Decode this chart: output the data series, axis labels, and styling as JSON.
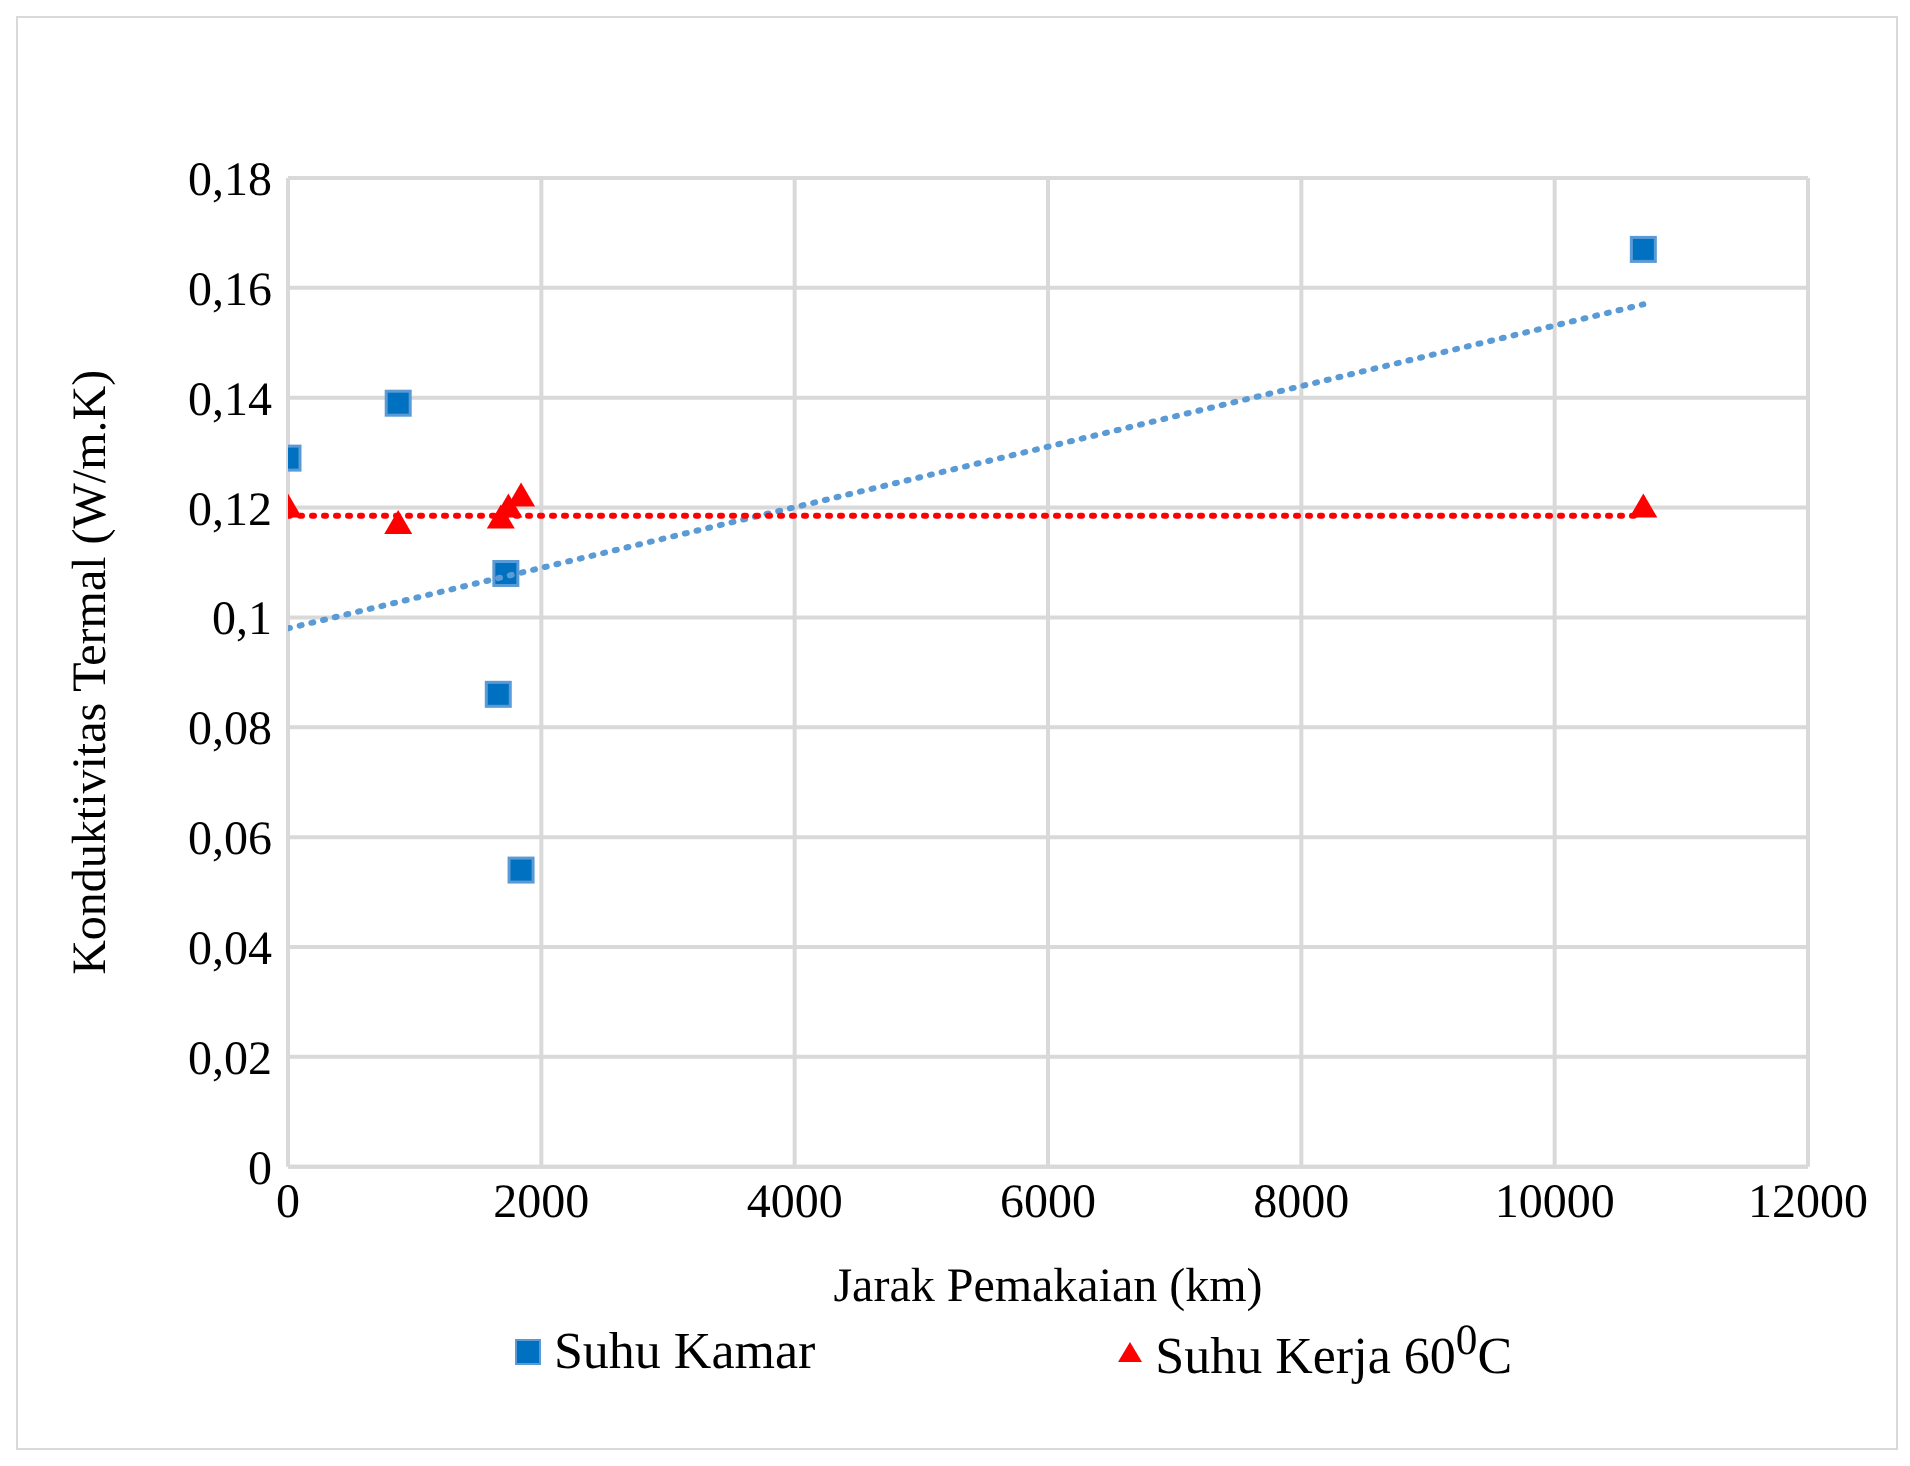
{
  "chart_data": {
    "type": "scatter",
    "xlabel": "Jarak Pemakaian (km)",
    "ylabel": "Konduktivitas Termal (W/m.K)",
    "xlim": [
      0,
      12000
    ],
    "xticks": [
      0,
      2000,
      4000,
      6000,
      8000,
      10000,
      12000
    ],
    "ylim": [
      0,
      0.18
    ],
    "yticks": [
      0,
      {
        "value": 0.02,
        "label": "0,02"
      },
      {
        "value": 0.04,
        "label": "0,04"
      },
      {
        "value": 0.06,
        "label": "0,06"
      },
      {
        "value": 0.08,
        "label": "0,08"
      },
      {
        "value": 0.1,
        "label": "0,1"
      },
      {
        "value": 0.12,
        "label": "0,12"
      },
      {
        "value": 0.14,
        "label": "0,14"
      },
      {
        "value": 0.16,
        "label": "0,16"
      },
      {
        "value": 0.18,
        "label": "0,18"
      }
    ],
    "grid": true,
    "legend": "bottom",
    "series": [
      {
        "name": "Suhu Kamar",
        "color": "#0070c0",
        "marker": "square",
        "x": [
          0,
          870,
          1720,
          1660,
          1840,
          10700
        ],
        "values": [
          0.129,
          0.139,
          0.108,
          0.086,
          0.054,
          0.167
        ]
      },
      {
        "name": "Suhu Kerja 60$^{0}$C",
        "color": "#ff0000",
        "marker": "triangle",
        "x": [
          0,
          870,
          1680,
          1740,
          1840,
          10700
        ],
        "values": [
          0.12,
          0.117,
          0.118,
          0.12,
          0.122,
          0.12
        ]
      },
      {
        "type": "line",
        "color": "#5b9bd5",
        "marker": "none",
        "line_style": "dotted",
        "x": [
          0,
          10700
        ],
        "values": [
          0.098,
          0.157
        ]
      },
      {
        "type": "line",
        "color": "#ff0000",
        "marker": "none",
        "line_style": "dotted",
        "x": [
          0,
          10700
        ],
        "values": [
          0.1185,
          0.1185
        ]
      }
    ]
  }
}
